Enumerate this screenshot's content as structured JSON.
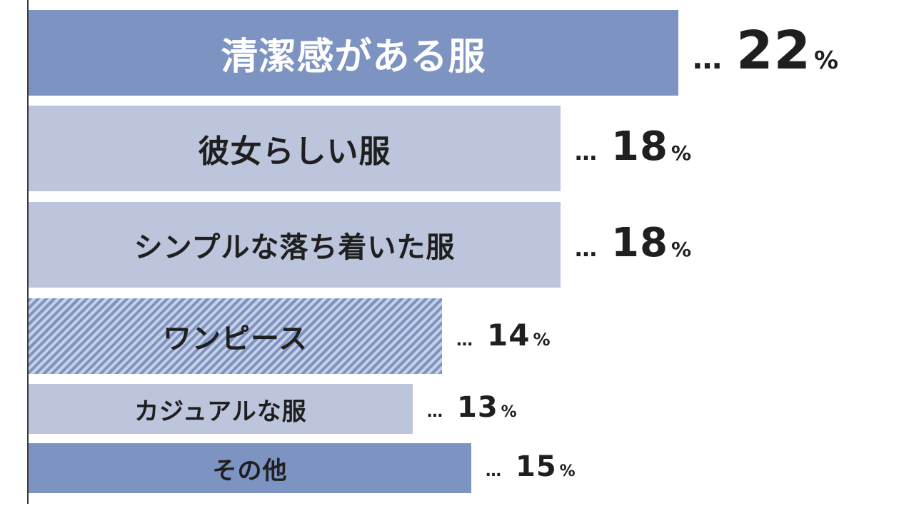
{
  "chart_data": {
    "type": "bar",
    "orientation": "horizontal",
    "categories": [
      "清潔感がある服",
      "彼女らしい服",
      "シンプルな落ち着いた服",
      "ワンピース",
      "カジュアルな服",
      "その他"
    ],
    "values": [
      22,
      18,
      18,
      14,
      13,
      15
    ],
    "unit": "%",
    "separator": "…",
    "colors": {
      "dark": "#7d93c2",
      "light": "#bcc5dc",
      "stripe": "#7d93c2",
      "text": "#1f1f1f"
    },
    "styles": [
      "dark",
      "light",
      "light",
      "striped",
      "light",
      "dark"
    ],
    "grid": false,
    "legend": "none"
  }
}
